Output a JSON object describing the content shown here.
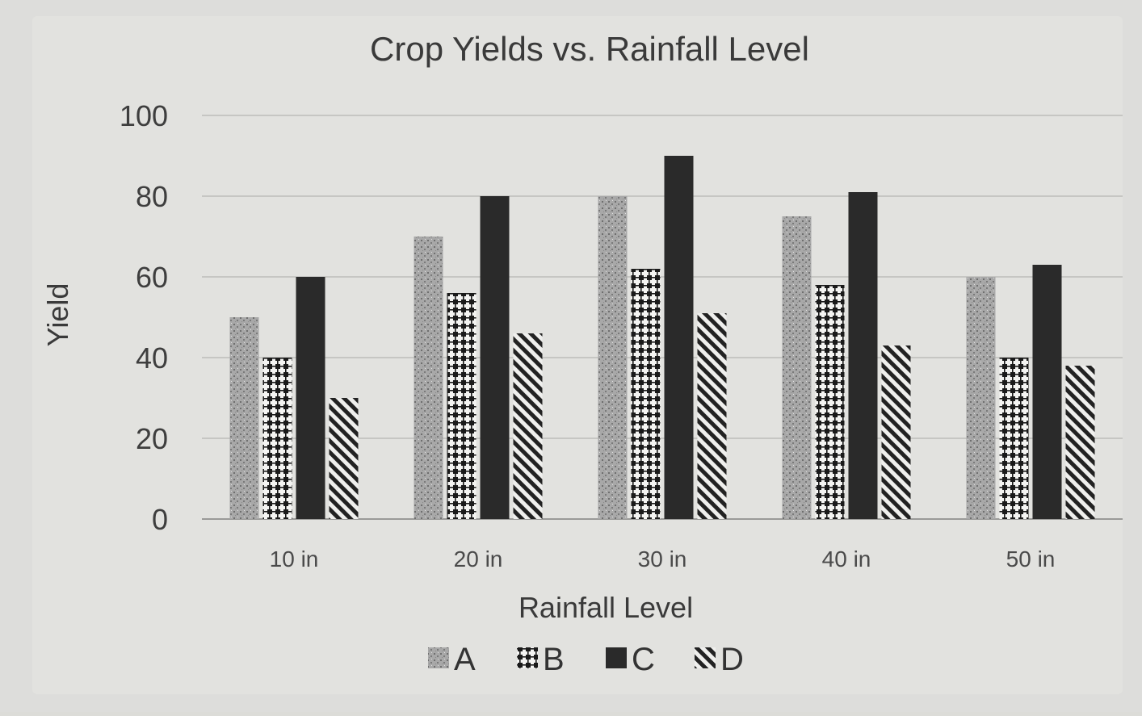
{
  "chart_data": {
    "type": "bar",
    "title": "Crop Yields vs. Rainfall Level",
    "xlabel": "Rainfall Level",
    "ylabel": "Yield",
    "categories": [
      "10 in",
      "20 in",
      "30 in",
      "40 in",
      "50 in"
    ],
    "yticks": [
      "0",
      "20",
      "40",
      "60",
      "80",
      "100"
    ],
    "ylim": [
      0,
      100
    ],
    "grid": true,
    "legend_position": "bottom",
    "series": [
      {
        "name": "A",
        "values": [
          50,
          70,
          80,
          75,
          60
        ],
        "pattern": "speckle"
      },
      {
        "name": "B",
        "values": [
          40,
          56,
          62,
          58,
          40
        ],
        "pattern": "dots-grid"
      },
      {
        "name": "C",
        "values": [
          60,
          80,
          90,
          81,
          63
        ],
        "pattern": "solid"
      },
      {
        "name": "D",
        "values": [
          30,
          46,
          51,
          43,
          38
        ],
        "pattern": "diagonal"
      }
    ]
  }
}
